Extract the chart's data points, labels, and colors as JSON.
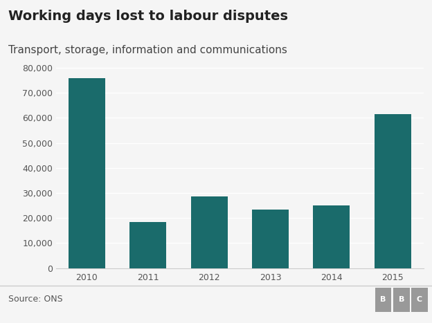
{
  "title": "Working days lost to labour disputes",
  "subtitle": "Transport, storage, information and communications",
  "source": "Source: ONS",
  "categories": [
    "2010",
    "2011",
    "2012",
    "2013",
    "2014",
    "2015"
  ],
  "values": [
    76000,
    18500,
    28500,
    23500,
    25000,
    61500
  ],
  "bar_color": "#1a6b6b",
  "background_color": "#f5f5f5",
  "ylim": [
    0,
    80000
  ],
  "yticks": [
    0,
    10000,
    20000,
    30000,
    40000,
    50000,
    60000,
    70000,
    80000
  ],
  "title_fontsize": 14,
  "subtitle_fontsize": 11,
  "tick_fontsize": 9,
  "source_fontsize": 9,
  "grid_color": "#ffffff",
  "spine_color": "#cccccc",
  "text_color": "#222222",
  "subtext_color": "#444444",
  "source_color": "#555555",
  "bbc_bg_color": "#999999",
  "bbc_text_color": "#ffffff"
}
